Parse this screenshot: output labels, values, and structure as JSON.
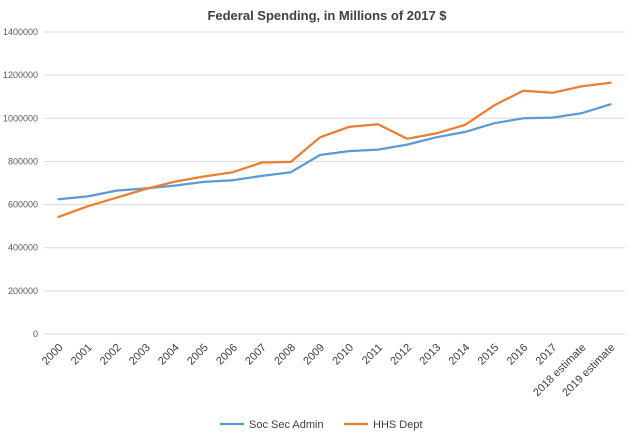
{
  "chart_data": {
    "type": "line",
    "title": "Federal Spending, in Millions of 2017 $",
    "xlabel": "",
    "ylabel": "",
    "ylim": [
      0,
      1400000
    ],
    "y_ticks": [
      "0",
      "200000",
      "400000",
      "600000",
      "800000",
      "1000000",
      "1200000",
      "1400000"
    ],
    "categories": [
      "2000",
      "2001",
      "2002",
      "2003",
      "2004",
      "2005",
      "2006",
      "2007",
      "2008",
      "2009",
      "2010",
      "2011",
      "2012",
      "2013",
      "2014",
      "2015",
      "2016",
      "2017",
      "2018 estimate",
      "2019 estimate"
    ],
    "grid": true,
    "legend_position": "bottom",
    "series": [
      {
        "name": "Soc Sec Admin",
        "color": "#5B9BD5",
        "values": [
          625000,
          638000,
          665000,
          675000,
          688000,
          705000,
          713000,
          733000,
          750000,
          830000,
          848000,
          855000,
          878000,
          912000,
          937000,
          977000,
          1000000,
          1003000,
          1023000,
          1065000
        ]
      },
      {
        "name": "HHS Dept",
        "color": "#ED7D31",
        "values": [
          543000,
          592000,
          632000,
          672000,
          706000,
          730000,
          750000,
          795000,
          798000,
          912000,
          960000,
          972000,
          905000,
          930000,
          970000,
          1060000,
          1128000,
          1118000,
          1148000,
          1165000
        ]
      }
    ]
  }
}
